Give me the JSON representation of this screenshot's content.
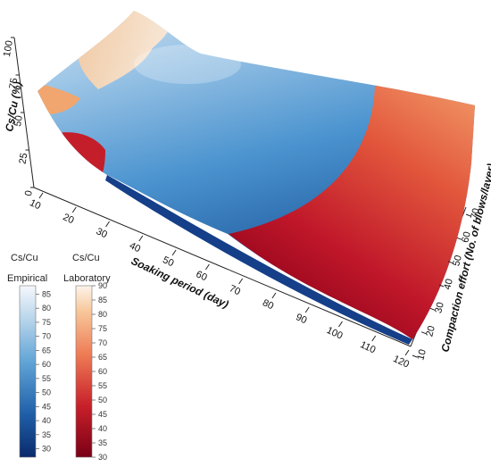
{
  "chart_data": {
    "type": "surface3d",
    "xlabel": "Soaking period (day)",
    "ylabel": "Compaction effort (No. of blows/layer)",
    "zlabel": "Cs/Cu (%)",
    "x_ticks": [
      "10",
      "20",
      "30",
      "40",
      "50",
      "60",
      "70",
      "80",
      "90",
      "100",
      "110",
      "120"
    ],
    "y_ticks": [
      "10",
      "20",
      "30",
      "40",
      "50",
      "60",
      "70"
    ],
    "z_ticks": [
      "0",
      "25",
      "50",
      "75",
      "100"
    ],
    "xlim": [
      10,
      120
    ],
    "ylim": [
      10,
      70
    ],
    "zlim": [
      0,
      100
    ],
    "series": [
      {
        "name": "Empirical",
        "colormap": "blues",
        "colorbar_title": "Cs/Cu",
        "colorbar_range": [
          27,
          88
        ],
        "colorbar_ticks": [
          "30",
          "35",
          "40",
          "45",
          "50",
          "55",
          "60",
          "65",
          "70",
          "75",
          "80",
          "85"
        ]
      },
      {
        "name": "Laboratory",
        "colormap": "reds",
        "colorbar_title": "Cs/Cu",
        "colorbar_range": [
          30,
          90
        ],
        "colorbar_ticks": [
          "30",
          "35",
          "40",
          "45",
          "50",
          "55",
          "60",
          "65",
          "70",
          "75",
          "80",
          "85",
          "90"
        ]
      }
    ]
  }
}
